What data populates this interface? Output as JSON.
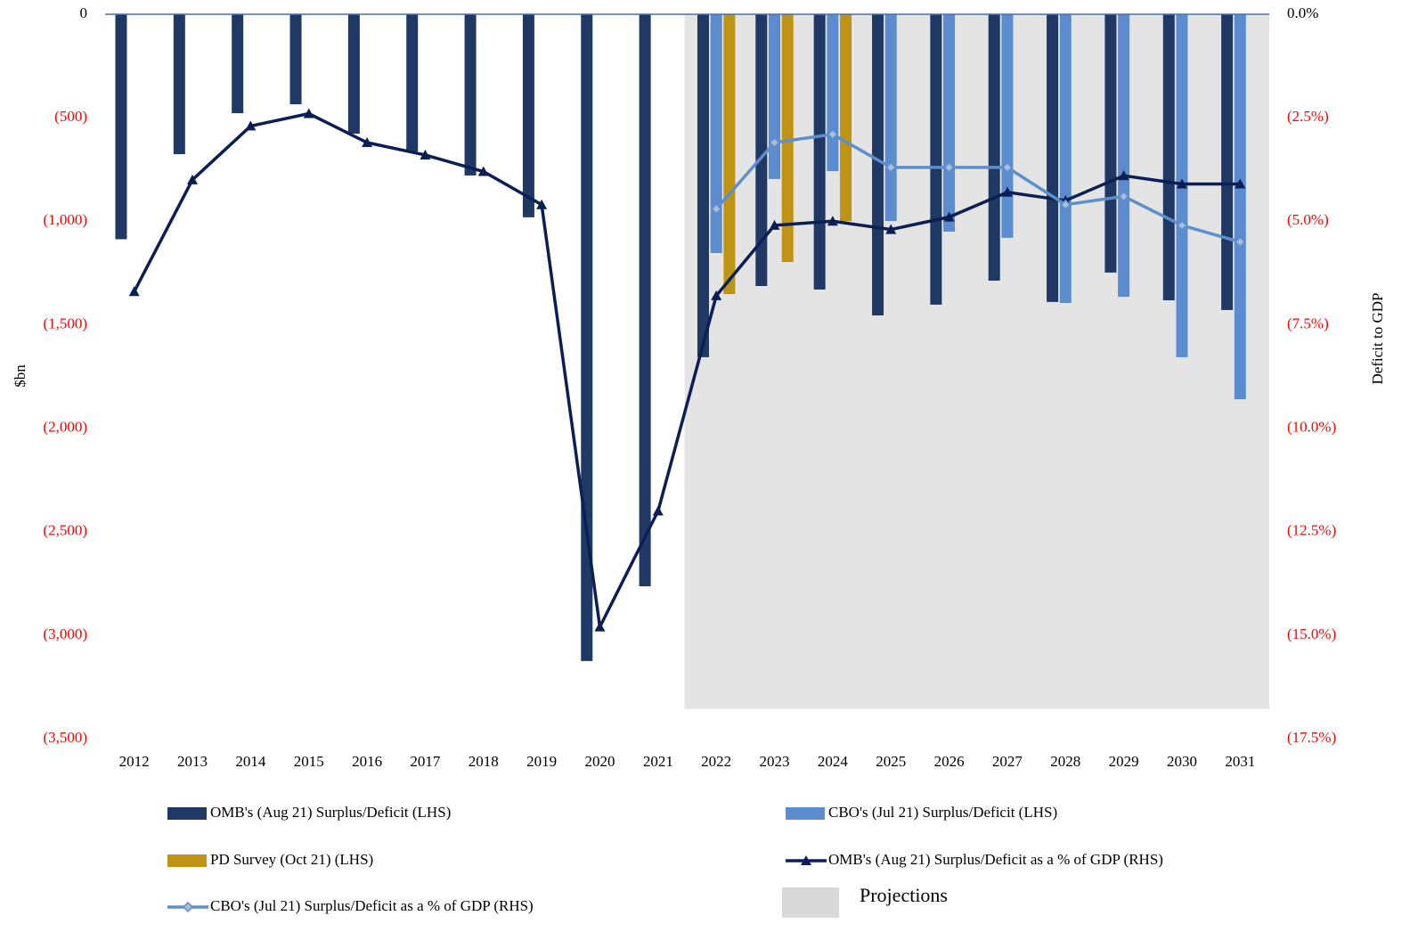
{
  "chart_data": {
    "type": "combo",
    "y_label": "$bn",
    "y2_label": "Deficit to GDP",
    "categories": [
      "2012",
      "2013",
      "2014",
      "2015",
      "2016",
      "2017",
      "2018",
      "2019",
      "2020",
      "2021",
      "2022",
      "2023",
      "2024",
      "2025",
      "2026",
      "2027",
      "2028",
      "2029",
      "2030",
      "2031"
    ],
    "series": [
      {
        "name": "OMB's (Aug 21) Surplus/Deficit (LHS)",
        "type": "bar",
        "color": "#1f3864",
        "values": [
          -1087,
          -676,
          -478,
          -435,
          -577,
          -663,
          -779,
          -981,
          -3125,
          -2764,
          -1657,
          -1313,
          -1330,
          -1455,
          -1403,
          -1287,
          -1390,
          -1248,
          -1382,
          -1429
        ]
      },
      {
        "name": "CBO's (Jul 21) Surplus/Deficit (LHS)",
        "type": "bar",
        "color": "#5a8ccf",
        "values": [
          null,
          null,
          null,
          null,
          null,
          null,
          null,
          null,
          null,
          null,
          -1154,
          -796,
          -758,
          -999,
          -1050,
          -1080,
          -1395,
          -1365,
          -1657,
          -1860
        ]
      },
      {
        "name": "PD Survey (Oct 21) (LHS)",
        "type": "bar",
        "color": "#bf9414",
        "values": [
          null,
          null,
          null,
          null,
          null,
          null,
          null,
          null,
          null,
          null,
          -1352,
          -1197,
          -1000,
          null,
          null,
          null,
          null,
          null,
          null,
          null
        ]
      },
      {
        "name": "OMB's (Aug 21) Surplus/Deficit as a % of GDP (RHS)",
        "type": "line",
        "axis": "y2",
        "color": "#0b1f55",
        "marker": "triangle",
        "values": [
          -6.7,
          -4.0,
          -2.7,
          -2.4,
          -3.1,
          -3.4,
          -3.8,
          -4.6,
          -14.8,
          -12.0,
          -6.8,
          -5.1,
          -5.0,
          -5.2,
          -4.9,
          -4.3,
          -4.5,
          -3.9,
          -4.1,
          -4.1
        ]
      },
      {
        "name": "CBO's (Jul 21) Surplus/Deficit as a % of GDP (RHS)",
        "type": "line",
        "axis": "y2",
        "color": "#5f8fcb",
        "marker": "diamond",
        "values": [
          null,
          null,
          null,
          null,
          null,
          null,
          null,
          null,
          null,
          null,
          -4.7,
          -3.1,
          -2.9,
          -3.7,
          -3.7,
          -3.7,
          -4.6,
          -4.4,
          -5.1,
          -5.5
        ]
      }
    ],
    "projection": {
      "label": "Projections",
      "from": "2022",
      "bottom": -3357,
      "color": "#e4e4e4"
    },
    "ylim": [
      -3500,
      0
    ],
    "yticks": [
      {
        "value": -3500,
        "label": "(3,500)"
      },
      {
        "value": -3000,
        "label": "(3,000)"
      },
      {
        "value": -2500,
        "label": "(2,500)"
      },
      {
        "value": -2000,
        "label": "(2,000)"
      },
      {
        "value": -1500,
        "label": "(1,500)"
      },
      {
        "value": -1000,
        "label": "(1,000)"
      },
      {
        "value": -500,
        "label": "(500)"
      },
      0
    ],
    "y2lim": [
      -17.5,
      0
    ],
    "y2ticks": [
      {
        "value": -17.5,
        "label": "(17.5%)"
      },
      {
        "value": -15,
        "label": "(15.0%)"
      },
      {
        "value": -12.5,
        "label": "(12.5%)"
      },
      {
        "value": -10,
        "label": "(10.0%)"
      },
      {
        "value": -7.5,
        "label": "(7.5%)"
      },
      {
        "value": -5,
        "label": "(5.0%)"
      },
      {
        "value": -2.5,
        "label": "(2.5%)"
      },
      {
        "value": 0,
        "label": "0.0%"
      }
    ],
    "negative_tick_color": "#ff0000",
    "grid": false
  }
}
